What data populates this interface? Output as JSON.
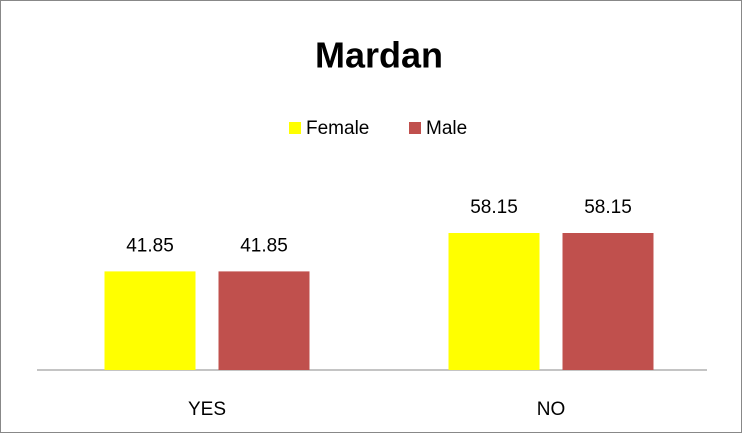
{
  "chart_data": {
    "type": "bar",
    "title": "Mardan",
    "categories": [
      "YES",
      "NO"
    ],
    "series": [
      {
        "name": "Female",
        "color": "#ffff00",
        "values": [
          41.85,
          58.15
        ]
      },
      {
        "name": "Male",
        "color": "#c0504d",
        "values": [
          41.85,
          58.15
        ]
      }
    ],
    "legend": "top"
  }
}
